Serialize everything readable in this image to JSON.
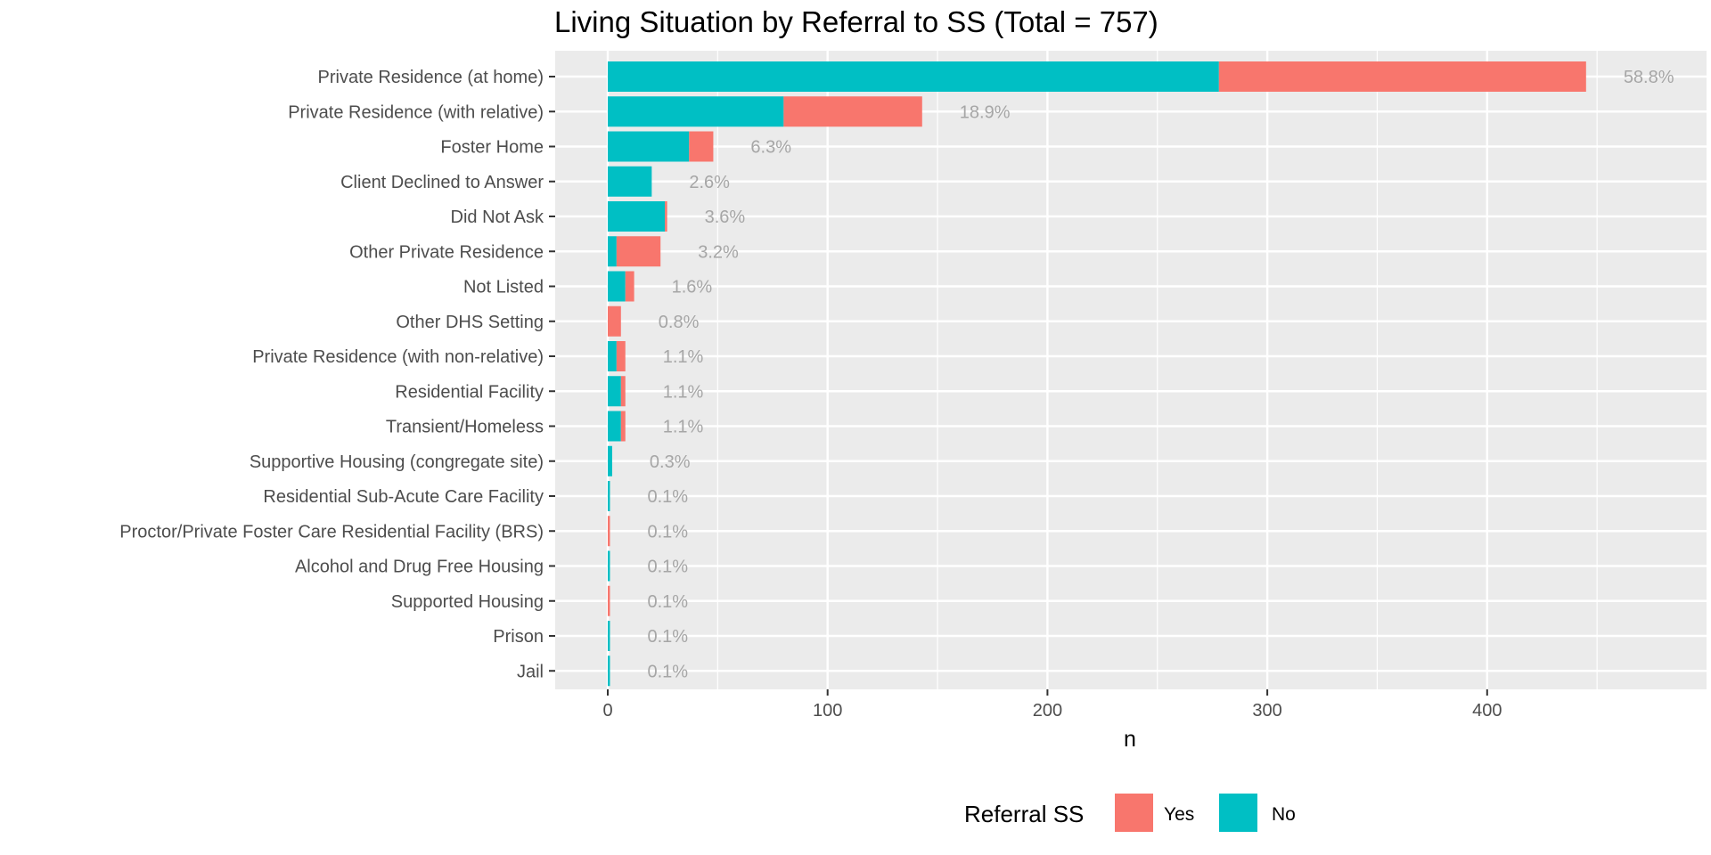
{
  "chart_data": {
    "type": "bar",
    "orientation": "horizontal",
    "stacked": true,
    "title": "Living Situation by Referral to SS (Total = 757)",
    "xlabel": "n",
    "ylabel": "",
    "xlim": [
      -23.5,
      498
    ],
    "xticks": [
      0,
      100,
      200,
      300,
      400
    ],
    "grid": true,
    "legend": {
      "title": "Referral SS",
      "position": "bottom",
      "entries": [
        "Yes",
        "No"
      ]
    },
    "colors": {
      "Yes": "#F8766D",
      "No": "#00BFC4",
      "panel": "#EBEBEB",
      "grid": "#FFFFFF"
    },
    "categories": [
      "Private Residence (at home)",
      "Private Residence (with relative)",
      "Foster Home",
      "Client Declined to Answer",
      "Did Not Ask",
      "Other Private Residence",
      "Not Listed",
      "Other DHS Setting",
      "Private Residence (with non-relative)",
      "Residential Facility",
      "Transient/Homeless",
      "Supportive Housing (congregate site)",
      "Residential Sub-Acute Care Facility",
      "Proctor/Private Foster Care Residential Facility (BRS)",
      "Alcohol and Drug Free Housing",
      "Supported Housing",
      "Prison",
      "Jail"
    ],
    "series": [
      {
        "name": "No",
        "values": [
          278,
          80,
          37,
          20,
          26,
          4,
          8,
          0,
          4,
          6,
          6,
          2,
          1,
          0,
          1,
          0,
          1,
          1
        ]
      },
      {
        "name": "Yes",
        "values": [
          167,
          63,
          11,
          0,
          1,
          20,
          4,
          6,
          4,
          2,
          2,
          0,
          0,
          1,
          0,
          1,
          0,
          0
        ]
      }
    ],
    "data_labels": [
      "58.8%",
      "18.9%",
      "6.3%",
      "2.6%",
      "3.6%",
      "3.2%",
      "1.6%",
      "0.8%",
      "1.1%",
      "1.1%",
      "1.1%",
      "0.3%",
      "0.1%",
      "0.1%",
      "0.1%",
      "0.1%",
      "0.1%",
      "0.1%"
    ]
  }
}
